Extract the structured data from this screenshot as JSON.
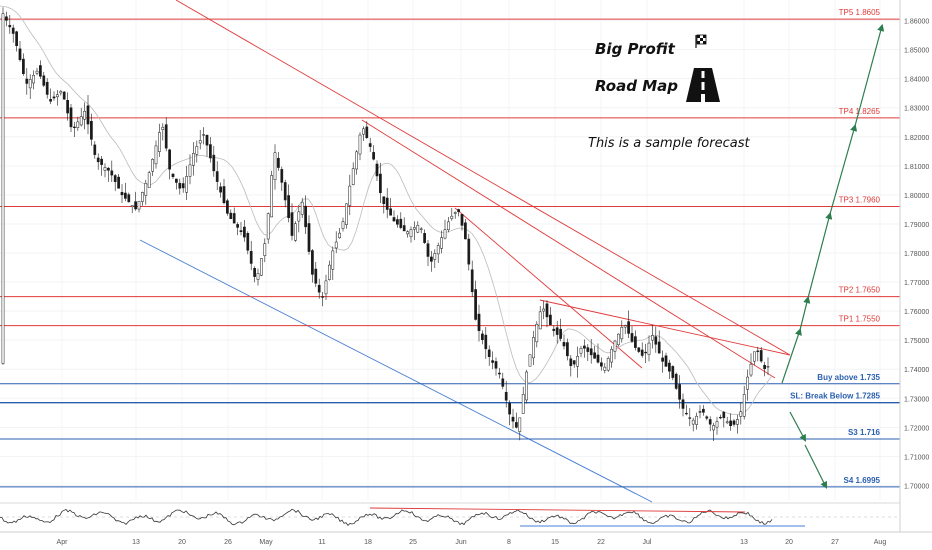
{
  "overlay": {
    "title_line1": "Big Profit",
    "title_line2": "Road Map",
    "note": "This is a sample forecast"
  },
  "chart_data": {
    "type": "candlestick",
    "price_range": [
      1.695,
      1.865
    ],
    "price_ticks": [
      "1.86000",
      "1.85000",
      "1.84000",
      "1.83000",
      "1.82000",
      "1.81000",
      "1.80000",
      "1.79000",
      "1.78000",
      "1.77000",
      "1.76000",
      "1.75000",
      "1.74000",
      "1.73000",
      "1.72000",
      "1.71000",
      "1.70000"
    ],
    "x_ticks": [
      "Apr",
      "13",
      "20",
      "26",
      "May",
      "11",
      "18",
      "25",
      "Jun",
      "8",
      "15",
      "22",
      "Jul",
      "13",
      "20",
      "27",
      "Aug"
    ],
    "oscillator": {
      "label": "50.00",
      "mid": 50
    },
    "levels": [
      {
        "label": "TP5 1.8605",
        "price": 1.8605,
        "color": "#e03a3a"
      },
      {
        "label": "TP4 1.8265",
        "price": 1.8265,
        "color": "#e03a3a"
      },
      {
        "label": "TP3 1.7960",
        "price": 1.796,
        "color": "#e03a3a"
      },
      {
        "label": "TP2 1.7650",
        "price": 1.765,
        "color": "#e03a3a"
      },
      {
        "label": "TP1 1.7550",
        "price": 1.755,
        "color": "#e03a3a"
      },
      {
        "label": "Buy above 1.735",
        "price": 1.735,
        "color": "#2a5fb0"
      },
      {
        "label": "SL: Break Below 1.7285",
        "price": 1.7285,
        "color": "#2a5fb0"
      },
      {
        "label": "S3 1.716",
        "price": 1.716,
        "color": "#2a5fb0"
      },
      {
        "label": "S4 1.6995",
        "price": 1.6995,
        "color": "#2a5fb0"
      }
    ],
    "colors": {
      "up": "#ffffff",
      "down": "#1a1a1a",
      "resistance": "#e03a3a",
      "support": "#4a7fd4",
      "forecast": "#2e7d4f",
      "ma": "#bbbbbb"
    }
  }
}
